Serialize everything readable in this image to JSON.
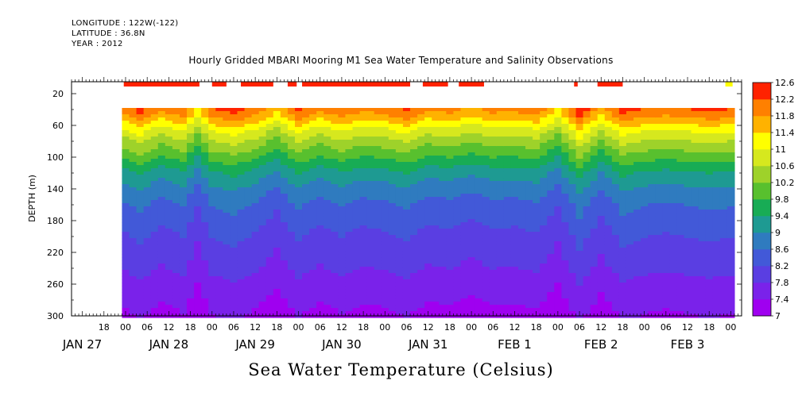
{
  "header": {
    "longitude": "LONGITUDE : 122W(-122)",
    "latitude": "LATITUDE : 36.8N",
    "year": "YEAR : 2012"
  },
  "chart_data": {
    "type": "heatmap",
    "title": "Hourly Gridded MBARI Mooring M1 Sea Water Temperature and Salinity Observations",
    "subtitle": "Sea Water Temperature (Celsius)",
    "ylabel": "DEPTH (m)",
    "xlabel": "",
    "y_axis": {
      "ylim": [
        300,
        5
      ],
      "inverted": true,
      "ticks": [
        20,
        60,
        100,
        140,
        180,
        220,
        260,
        300
      ]
    },
    "x_axis": {
      "hour_ticks": [
        {
          "h": -6,
          "label": "18"
        },
        {
          "h": 0,
          "label": "00"
        },
        {
          "h": 6,
          "label": "06"
        },
        {
          "h": 12,
          "label": "12"
        },
        {
          "h": 18,
          "label": "18"
        },
        {
          "h": 24,
          "label": "00"
        },
        {
          "h": 30,
          "label": "06"
        },
        {
          "h": 36,
          "label": "12"
        },
        {
          "h": 42,
          "label": "18"
        },
        {
          "h": 48,
          "label": "00"
        },
        {
          "h": 54,
          "label": "06"
        },
        {
          "h": 60,
          "label": "12"
        },
        {
          "h": 66,
          "label": "18"
        },
        {
          "h": 72,
          "label": "00"
        },
        {
          "h": 78,
          "label": "06"
        },
        {
          "h": 84,
          "label": "12"
        },
        {
          "h": 90,
          "label": "18"
        },
        {
          "h": 96,
          "label": "00"
        },
        {
          "h": 102,
          "label": "06"
        },
        {
          "h": 108,
          "label": "12"
        },
        {
          "h": 114,
          "label": "18"
        },
        {
          "h": 120,
          "label": "00"
        },
        {
          "h": 126,
          "label": "06"
        },
        {
          "h": 132,
          "label": "12"
        },
        {
          "h": 138,
          "label": "18"
        },
        {
          "h": 144,
          "label": "00"
        },
        {
          "h": 150,
          "label": "06"
        },
        {
          "h": 156,
          "label": "12"
        },
        {
          "h": 162,
          "label": "18"
        },
        {
          "h": 168,
          "label": "00"
        }
      ],
      "day_labels": [
        {
          "h": -12,
          "label": "JAN 27"
        },
        {
          "h": 12,
          "label": "JAN 28"
        },
        {
          "h": 36,
          "label": "JAN 29"
        },
        {
          "h": 60,
          "label": "JAN 30"
        },
        {
          "h": 84,
          "label": "JAN 31"
        },
        {
          "h": 108,
          "label": "FEB  1"
        },
        {
          "h": 132,
          "label": "FEB  2"
        },
        {
          "h": 156,
          "label": "FEB  3"
        }
      ],
      "xlim_hours": [
        -15,
        171
      ]
    },
    "colorbar": {
      "levels": [
        7,
        7.4,
        7.8,
        8.2,
        8.6,
        9,
        9.4,
        9.8,
        10.2,
        10.6,
        11,
        11.4,
        11.8,
        12.2,
        12.6
      ],
      "labels": [
        "12.6",
        "12.2",
        "11.8",
        "11.4",
        "11",
        "10.6",
        "10.2",
        "9.8",
        "9.4",
        "9",
        "8.6",
        "8.2",
        "7.8",
        "7.4",
        "7"
      ]
    },
    "data_extent": {
      "start_hour": -1,
      "end_hour": 169,
      "top_depth": 38,
      "bottom_depth": 300
    },
    "surface_segments": [
      {
        "start": -0.5,
        "end": 20.5,
        "value": 12.4
      },
      {
        "start": 24,
        "end": 28,
        "value": 12.2
      },
      {
        "start": 32,
        "end": 41,
        "value": 12.2
      },
      {
        "start": 45,
        "end": 47.5,
        "value": 12.2
      },
      {
        "start": 49,
        "end": 79,
        "value": 12.2
      },
      {
        "start": 82.5,
        "end": 89.5,
        "value": 12.2
      },
      {
        "start": 92.5,
        "end": 99.5,
        "value": 12.2
      },
      {
        "start": 124.5,
        "end": 125.5,
        "value": 12.2
      },
      {
        "start": 131,
        "end": 138,
        "value": 12.2
      },
      {
        "start": 166.5,
        "end": 168.5,
        "value": 11.0
      }
    ],
    "profile": [
      {
        "depth": 38,
        "temp": 12.0
      },
      {
        "depth": 50,
        "temp": 11.6
      },
      {
        "depth": 65,
        "temp": 10.9
      },
      {
        "depth": 80,
        "temp": 10.4
      },
      {
        "depth": 100,
        "temp": 9.8
      },
      {
        "depth": 120,
        "temp": 9.2
      },
      {
        "depth": 140,
        "temp": 8.8
      },
      {
        "depth": 160,
        "temp": 8.5
      },
      {
        "depth": 180,
        "temp": 8.3
      },
      {
        "depth": 200,
        "temp": 8.1
      },
      {
        "depth": 220,
        "temp": 7.95
      },
      {
        "depth": 240,
        "temp": 7.8
      },
      {
        "depth": 260,
        "temp": 7.6
      },
      {
        "depth": 280,
        "temp": 7.45
      },
      {
        "depth": 300,
        "temp": 7.3
      }
    ],
    "time_anomaly": [
      {
        "h": -1,
        "d": 0.0
      },
      {
        "h": 4,
        "d": 0.35
      },
      {
        "h": 10,
        "d": -0.1
      },
      {
        "h": 16,
        "d": 0.2
      },
      {
        "h": 20,
        "d": -0.5
      },
      {
        "h": 24,
        "d": 0.2
      },
      {
        "h": 30,
        "d": 0.4
      },
      {
        "h": 36,
        "d": 0.1
      },
      {
        "h": 42,
        "d": -0.4
      },
      {
        "h": 48,
        "d": 0.3
      },
      {
        "h": 54,
        "d": -0.1
      },
      {
        "h": 60,
        "d": 0.2
      },
      {
        "h": 66,
        "d": -0.05
      },
      {
        "h": 72,
        "d": 0.05
      },
      {
        "h": 78,
        "d": 0.3
      },
      {
        "h": 84,
        "d": -0.1
      },
      {
        "h": 90,
        "d": 0.0
      },
      {
        "h": 96,
        "d": -0.2
      },
      {
        "h": 102,
        "d": 0.0
      },
      {
        "h": 108,
        "d": -0.05
      },
      {
        "h": 114,
        "d": 0.1
      },
      {
        "h": 120,
        "d": -0.5
      },
      {
        "h": 126,
        "d": 0.5
      },
      {
        "h": 132,
        "d": -0.3
      },
      {
        "h": 138,
        "d": 0.4
      },
      {
        "h": 144,
        "d": 0.2
      },
      {
        "h": 150,
        "d": 0.1
      },
      {
        "h": 156,
        "d": 0.2
      },
      {
        "h": 162,
        "d": 0.3
      },
      {
        "h": 169,
        "d": 0.2
      }
    ]
  }
}
